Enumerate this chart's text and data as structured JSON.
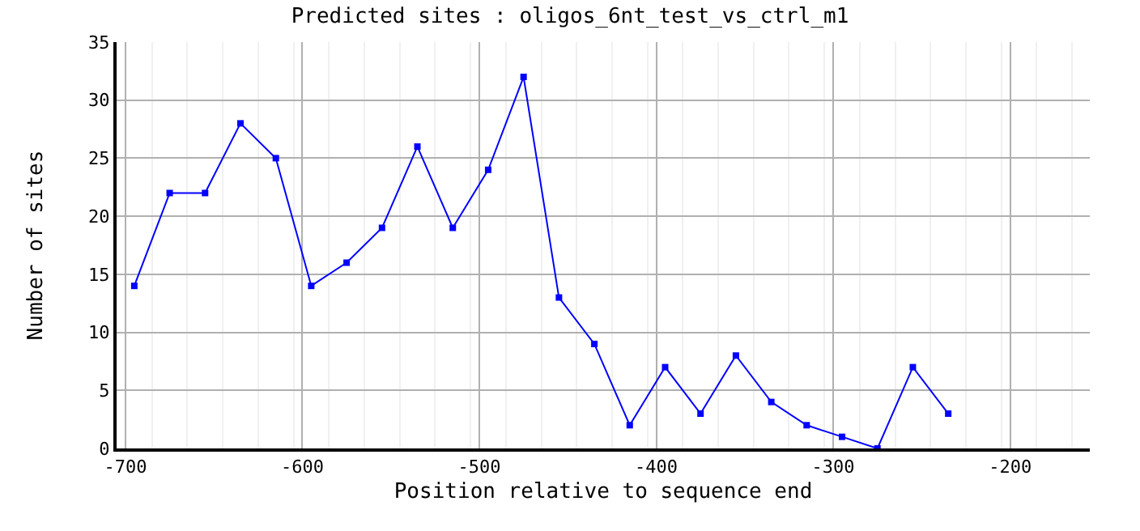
{
  "chart_data": {
    "type": "line",
    "title": "Predicted sites : oligos_6nt_test_vs_ctrl_m1",
    "xlabel": "Position relative to sequence end",
    "ylabel": "Number of sites",
    "x": [
      -695,
      -675,
      -655,
      -635,
      -615,
      -595,
      -575,
      -555,
      -535,
      -515,
      -495,
      -475,
      -455,
      -435,
      -415,
      -395,
      -375,
      -355,
      -335,
      -315,
      -295,
      -275,
      -255,
      -235
    ],
    "series": [
      {
        "color": "#0000ff",
        "values": [
          14,
          22,
          22,
          28,
          25,
          14,
          16,
          19,
          26,
          19,
          24,
          32,
          13,
          9,
          2,
          7,
          3,
          8,
          4,
          2,
          1,
          0,
          7,
          3
        ]
      }
    ],
    "xlim": [
      -705,
      -155
    ],
    "xticks": [
      -700,
      -600,
      -500,
      -400,
      -300,
      -200
    ],
    "ylim": [
      0,
      35
    ],
    "yticks": [
      0,
      5,
      10,
      15,
      20,
      25,
      30,
      35
    ],
    "grid": true,
    "marker": "square",
    "line_style": "solid",
    "legend": false
  }
}
